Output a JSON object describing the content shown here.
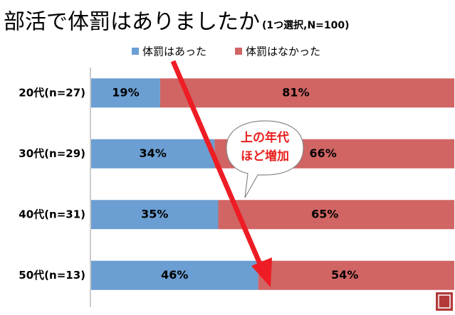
{
  "chart_data": {
    "type": "stacked_bar_horizontal",
    "title": "部活で体罰はありましたか",
    "subtitle": "(1つ選択,N=100)",
    "categories": [
      "20代(n=27)",
      "30代(n=29)",
      "40代(n=31)",
      "50代(n=13)"
    ],
    "series": [
      {
        "name": "体罰はあった",
        "color": "#6b9ed2",
        "values": [
          19,
          34,
          35,
          46
        ],
        "value_labels": [
          "19%",
          "34%",
          "35%",
          "46%"
        ]
      },
      {
        "name": "体罰はなかった",
        "color": "#d06564",
        "values": [
          81,
          66,
          65,
          54
        ],
        "value_labels": [
          "81%",
          "66%",
          "65%",
          "54%"
        ]
      }
    ],
    "xlim": [
      0,
      100
    ],
    "legend": "top",
    "annotation": [
      "上の年代",
      "ほど増加"
    ]
  }
}
